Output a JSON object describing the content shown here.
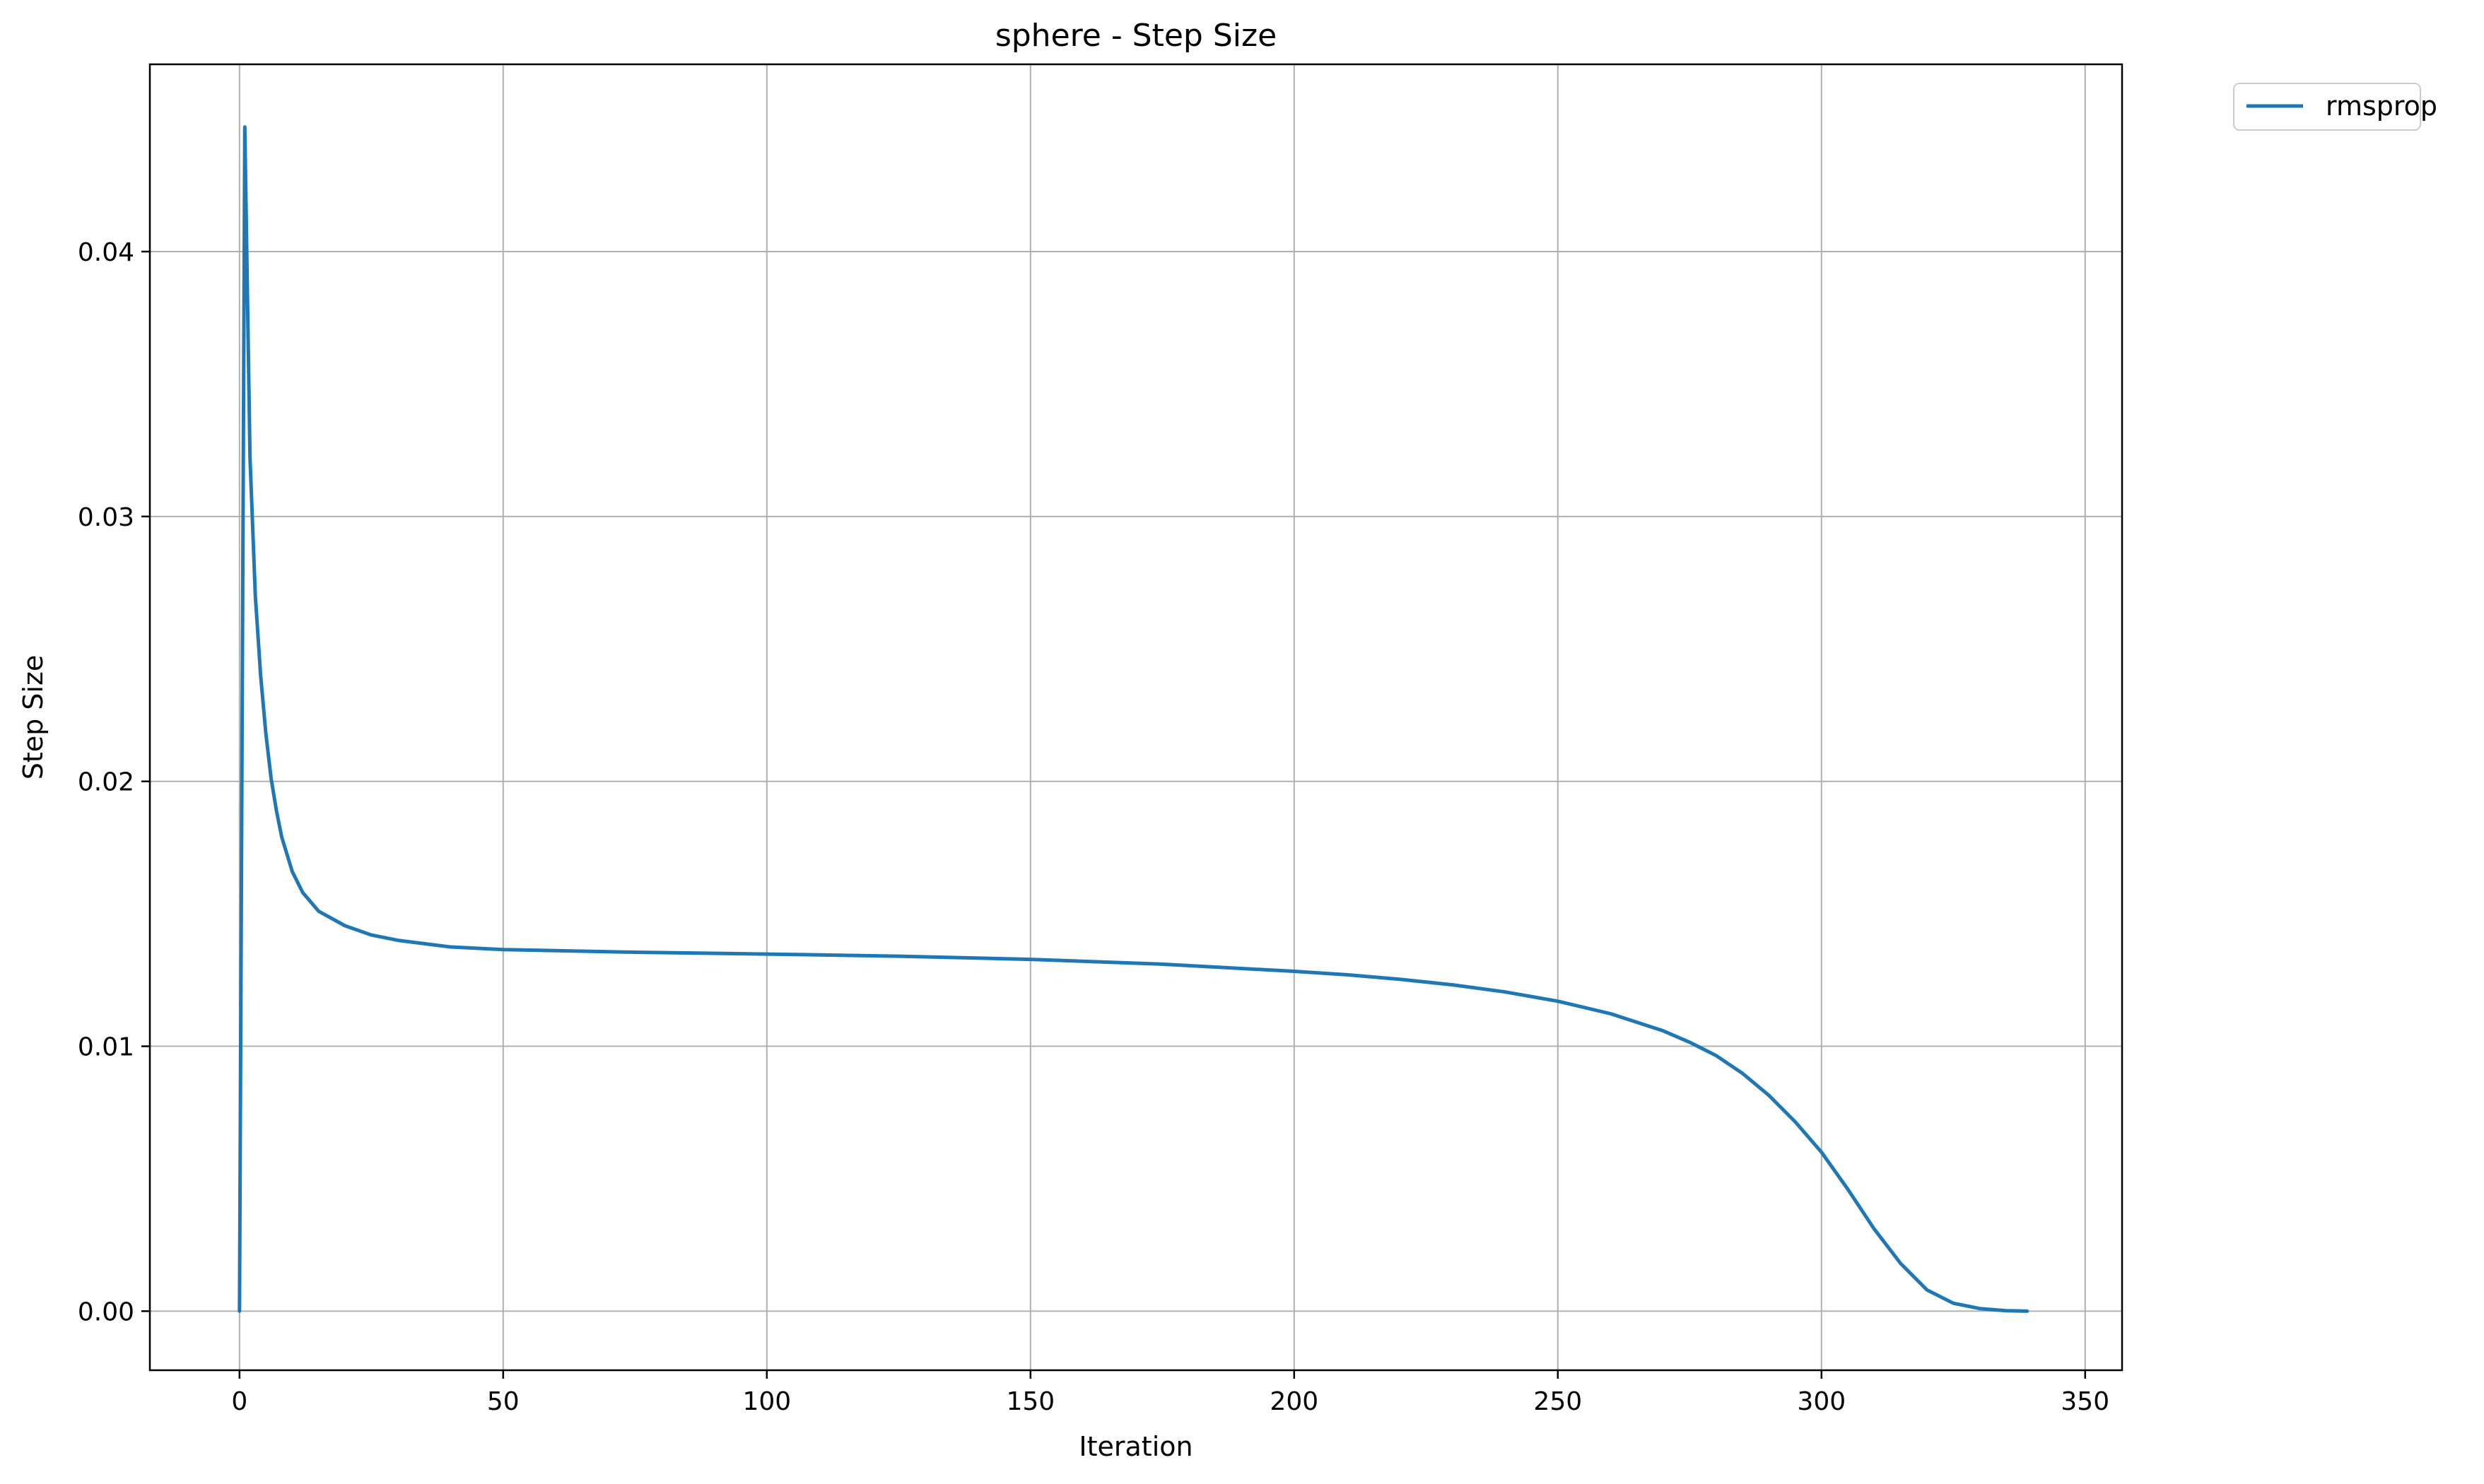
{
  "chart_data": {
    "type": "line",
    "title": "sphere - Step Size",
    "xlabel": "Iteration",
    "ylabel": "Step Size",
    "xlim": [
      -17,
      357
    ],
    "ylim": [
      -0.00223,
      0.04707
    ],
    "xticks": [
      0,
      50,
      100,
      150,
      200,
      250,
      300,
      350
    ],
    "yticks": [
      0.0,
      0.01,
      0.02,
      0.03,
      0.04
    ],
    "xtick_labels": [
      "0",
      "50",
      "100",
      "150",
      "200",
      "250",
      "300",
      "350"
    ],
    "ytick_labels": [
      "0.00",
      "0.01",
      "0.02",
      "0.03",
      "0.04"
    ],
    "grid": true,
    "legend_position": "outside-top-right",
    "series": [
      {
        "name": "rmsprop",
        "color": "#1f77b4",
        "x": [
          0,
          1,
          2,
          3,
          4,
          5,
          6,
          7,
          8,
          10,
          12,
          15,
          20,
          25,
          30,
          40,
          50,
          75,
          100,
          125,
          150,
          175,
          200,
          210,
          220,
          230,
          240,
          250,
          260,
          270,
          275,
          280,
          285,
          290,
          295,
          300,
          305,
          310,
          315,
          320,
          325,
          330,
          335,
          339
        ],
        "y": [
          0.0,
          0.0447,
          0.0322,
          0.027,
          0.024,
          0.0218,
          0.0201,
          0.0189,
          0.0179,
          0.0166,
          0.0158,
          0.0151,
          0.01455,
          0.0142,
          0.014,
          0.01375,
          0.01365,
          0.01355,
          0.01348,
          0.0134,
          0.01328,
          0.0131,
          0.01283,
          0.0127,
          0.01253,
          0.01232,
          0.01205,
          0.0117,
          0.01123,
          0.01058,
          0.01015,
          0.00965,
          0.00898,
          0.00815,
          0.00715,
          0.006,
          0.0046,
          0.0031,
          0.0018,
          0.0008,
          0.0003,
          0.0001,
          2e-05,
          0.0
        ]
      }
    ]
  }
}
